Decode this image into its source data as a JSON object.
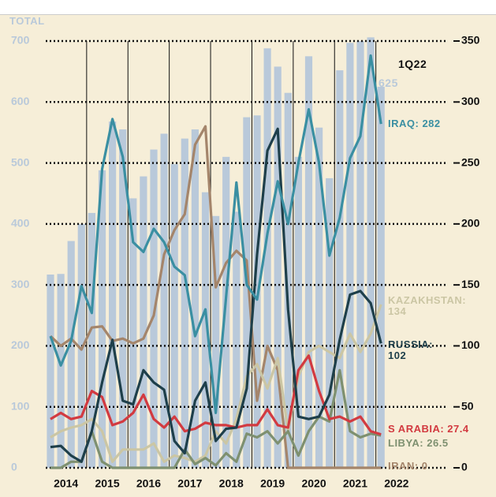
{
  "chart_data": {
    "type": "bar_line",
    "y_label": "TOTAL",
    "period_label": "1Q22",
    "categories": [
      "2014",
      null,
      null,
      null,
      "2015",
      null,
      null,
      null,
      "2016",
      null,
      null,
      null,
      "2017",
      null,
      null,
      null,
      "2018",
      null,
      null,
      null,
      "2019",
      null,
      null,
      null,
      "2020",
      null,
      null,
      null,
      "2021",
      null,
      null,
      null,
      "2022"
    ],
    "bars": {
      "color": "#b9c9da",
      "values": [
        317,
        318,
        372,
        400,
        418,
        488,
        568,
        555,
        442,
        478,
        522,
        548,
        498,
        540,
        555,
        452,
        413,
        510,
        420,
        575,
        578,
        688,
        658,
        615,
        510,
        675,
        558,
        475,
        652,
        697,
        700,
        706,
        625
      ],
      "end_label": "625"
    },
    "ylim": [
      0,
      700
    ],
    "yticks": [
      0,
      100,
      200,
      300,
      400,
      500,
      600,
      700
    ],
    "y2lim": [
      0,
      350
    ],
    "y2ticks": [
      0,
      50,
      100,
      150,
      200,
      250,
      300,
      350
    ],
    "grid": true,
    "series": [
      {
        "name": "IRAN: 0",
        "color": "#a4856b",
        "axis": "y2",
        "values": [
          108,
          100,
          106,
          97,
          115,
          116,
          104,
          106,
          102,
          106,
          125,
          175,
          195,
          208,
          265,
          280,
          148,
          168,
          178,
          170,
          55,
          100,
          80,
          0,
          0,
          0,
          0,
          0,
          0,
          0,
          0,
          0,
          0
        ]
      },
      {
        "name": "KAZAKHSTAN: 134",
        "color": "#cbc6a4",
        "axis": "y2",
        "values": [
          25,
          30,
          33,
          35,
          40,
          30,
          5,
          15,
          15,
          15,
          20,
          5,
          10,
          8,
          5,
          10,
          30,
          20,
          40,
          75,
          85,
          65,
          90,
          30,
          75,
          95,
          100,
          95,
          90,
          110,
          95,
          110,
          134
        ]
      },
      {
        "name": "LIBYA: 26.5",
        "color": "#7e9070",
        "axis": "y2",
        "values": [
          0,
          0,
          5,
          5,
          30,
          5,
          0,
          0,
          0,
          0,
          0,
          0,
          0,
          15,
          3,
          8,
          2,
          12,
          5,
          28,
          25,
          30,
          20,
          30,
          10,
          30,
          42,
          38,
          80,
          30,
          25,
          28,
          26.5
        ]
      },
      {
        "name": "S ARABIA: 27.4",
        "color": "#d23a40",
        "axis": "y2",
        "values": [
          40,
          45,
          40,
          42,
          63,
          58,
          35,
          38,
          45,
          60,
          40,
          33,
          42,
          30,
          32,
          37,
          35,
          35,
          33,
          35,
          35,
          48,
          35,
          33,
          80,
          92,
          63,
          40,
          42,
          38,
          42,
          30,
          27.4
        ]
      },
      {
        "name": "RUSSIA: 102",
        "color": "#1e3f4a",
        "axis": "y2",
        "values": [
          17,
          18,
          10,
          5,
          30,
          70,
          105,
          55,
          52,
          80,
          70,
          64,
          22,
          12,
          55,
          70,
          22,
          32,
          33,
          65,
          175,
          260,
          278,
          130,
          42,
          40,
          42,
          60,
          105,
          142,
          145,
          135,
          102
        ]
      },
      {
        "name": "IRAQ: 282",
        "color": "#3a8fa2",
        "axis": "y2",
        "values": [
          108,
          84,
          104,
          149,
          127,
          245,
          286,
          255,
          185,
          177,
          196,
          185,
          165,
          158,
          108,
          130,
          45,
          140,
          234,
          150,
          138,
          192,
          235,
          200,
          250,
          294,
          250,
          174,
          205,
          254,
          272,
          338,
          282
        ]
      }
    ]
  }
}
